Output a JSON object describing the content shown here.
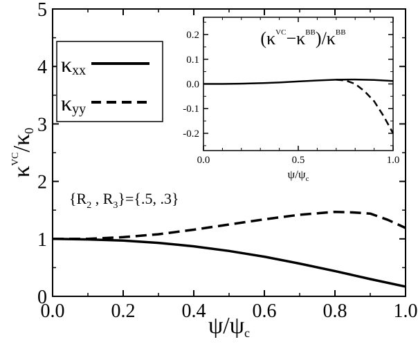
{
  "chart_data": [
    {
      "id": "main",
      "type": "line",
      "title": "",
      "xlabel": "ψ/ψc",
      "ylabel": "κVC/κ0",
      "xlim": [
        0,
        1
      ],
      "ylim": [
        0,
        5
      ],
      "x_ticks": [
        "0.0",
        "0.2",
        "0.4",
        "0.6",
        "0.8",
        "1.0"
      ],
      "y_ticks": [
        "0",
        "1",
        "2",
        "3",
        "4",
        "5"
      ],
      "annotation": "{R2 , R3}={.5, .3}",
      "legend": {
        "position": "top-left",
        "entries": [
          {
            "label": "κxx",
            "style": "solid"
          },
          {
            "label": "κyy",
            "style": "dashed"
          }
        ]
      },
      "series": [
        {
          "name": "κxx",
          "style": "solid",
          "x": [
            0.0,
            0.1,
            0.2,
            0.3,
            0.4,
            0.5,
            0.6,
            0.7,
            0.8,
            0.9,
            1.0
          ],
          "y": [
            1.0,
            0.99,
            0.97,
            0.93,
            0.87,
            0.79,
            0.69,
            0.57,
            0.44,
            0.3,
            0.17
          ]
        },
        {
          "name": "κyy",
          "style": "dashed",
          "x": [
            0.0,
            0.1,
            0.2,
            0.3,
            0.4,
            0.5,
            0.6,
            0.7,
            0.8,
            0.85,
            0.9,
            0.95,
            1.0
          ],
          "y": [
            1.0,
            1.0,
            1.03,
            1.08,
            1.16,
            1.25,
            1.34,
            1.42,
            1.47,
            1.46,
            1.44,
            1.33,
            1.19
          ]
        }
      ]
    },
    {
      "id": "inset",
      "type": "line",
      "title": "(κVC−κBB)/κBB",
      "xlabel": "ψ/ψc",
      "ylabel": "",
      "xlim": [
        0,
        1
      ],
      "ylim": [
        -0.27,
        0.27
      ],
      "x_ticks": [
        "0.0",
        "0.5",
        "1.0"
      ],
      "y_ticks": [
        "0.2",
        "0.1",
        "0.0",
        "-0.1",
        "-0.2"
      ],
      "series": [
        {
          "name": "κxx",
          "style": "solid",
          "x": [
            0.0,
            0.1,
            0.2,
            0.3,
            0.4,
            0.5,
            0.6,
            0.7,
            0.8,
            0.9,
            1.0
          ],
          "y": [
            0.0,
            0.0,
            0.001,
            0.003,
            0.006,
            0.01,
            0.014,
            0.017,
            0.018,
            0.016,
            0.012
          ]
        },
        {
          "name": "κyy",
          "style": "dashed",
          "x": [
            0.7,
            0.75,
            0.8,
            0.85,
            0.9,
            0.95,
            1.0
          ],
          "y": [
            0.017,
            0.014,
            0.0,
            -0.03,
            -0.07,
            -0.13,
            -0.2
          ]
        }
      ]
    }
  ]
}
